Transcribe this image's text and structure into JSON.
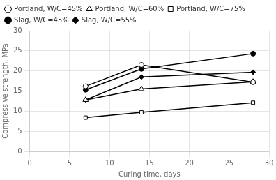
{
  "chart_data": {
    "type": "line",
    "xlabel": "Curing time, days",
    "ylabel": "Compressive strength, MPa",
    "x": [
      7,
      14,
      28
    ],
    "series": [
      {
        "name": "Portland, W/C=45%",
        "color": "#000000",
        "marker": "circle-open",
        "values": [
          16.2,
          21.5,
          17.2
        ]
      },
      {
        "name": "Portland, W/C=60%",
        "color": "#000000",
        "marker": "triangle-open",
        "values": [
          12.8,
          15.5,
          17.3
        ]
      },
      {
        "name": "Portland, W/C=75%",
        "color": "#000000",
        "marker": "square-open",
        "values": [
          8.4,
          9.7,
          12.1
        ]
      },
      {
        "name": "Slag, W/C=45%",
        "color": "#000000",
        "marker": "circle",
        "values": [
          15.3,
          20.5,
          24.3
        ]
      },
      {
        "name": "Slag, W/C=55%",
        "color": "#000000",
        "marker": "diamond",
        "values": [
          12.8,
          18.5,
          19.7
        ]
      }
    ],
    "xlim": [
      0,
      30
    ],
    "ylim": [
      0,
      30
    ],
    "xticks": [
      0,
      5,
      10,
      15,
      20,
      25,
      30
    ],
    "yticks": [
      0,
      5,
      10,
      15,
      20,
      25,
      30
    ],
    "grid": true,
    "legend": "upper left"
  }
}
